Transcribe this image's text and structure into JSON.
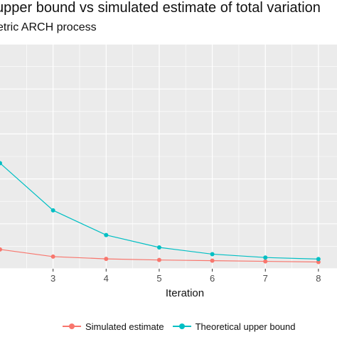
{
  "chart_data": {
    "type": "line",
    "title": "upper bound vs simulated estimate of total variation",
    "subtitle": "etric ARCH process",
    "xlabel": "Iteration",
    "ylabel": "",
    "x": [
      2,
      3,
      4,
      5,
      6,
      7,
      8
    ],
    "xticks": [
      "3",
      "4",
      "5",
      "6",
      "7",
      "8"
    ],
    "xlim": [
      2.0,
      8.35
    ],
    "ylim": [
      0.0,
      1.0
    ],
    "grid": true,
    "legend_position": "bottom",
    "series": [
      {
        "name": "Simulated estimate",
        "color": "#F8766D",
        "values": [
          0.086,
          0.054,
          0.044,
          0.039,
          0.036,
          0.033,
          0.03
        ]
      },
      {
        "name": "Theoretical upper bound",
        "color": "#00BFC4",
        "values": [
          0.47,
          0.26,
          0.15,
          0.095,
          0.065,
          0.05,
          0.043
        ]
      }
    ]
  }
}
